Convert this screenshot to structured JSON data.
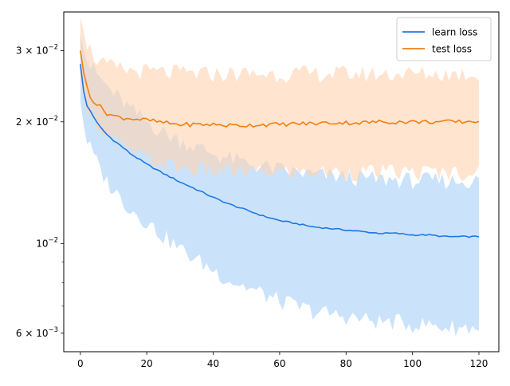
{
  "chart_data": {
    "type": "line",
    "xlim": [
      -5,
      126
    ],
    "ylim": [
      0.0054,
      0.0374
    ],
    "yscale": "log",
    "grid": false,
    "legend_position": "top-right",
    "x_ticks": [
      {
        "value": 0,
        "label": "0"
      },
      {
        "value": 20,
        "label": "20"
      },
      {
        "value": 40,
        "label": "40"
      },
      {
        "value": 60,
        "label": "60"
      },
      {
        "value": 80,
        "label": "80"
      },
      {
        "value": 100,
        "label": "100"
      },
      {
        "value": 120,
        "label": "120"
      }
    ],
    "y_major_ticks": [
      {
        "value": 0.006,
        "base": "6 × 10",
        "exp": "−3"
      },
      {
        "value": 0.01,
        "base": "10",
        "exp": "−2"
      },
      {
        "value": 0.02,
        "base": "2 × 10",
        "exp": "−2"
      },
      {
        "value": 0.03,
        "base": "3 × 10",
        "exp": "−2"
      }
    ],
    "y_minor_ticks": [
      0.007,
      0.008,
      0.009,
      0.04
    ],
    "series": [
      {
        "name": "learn loss",
        "color": "#1f77e4",
        "band_color": "#a9d1f7",
        "key_x": [
          0,
          1,
          2,
          3,
          4,
          5,
          6,
          7,
          8,
          10,
          12,
          15,
          20,
          25,
          30,
          35,
          40,
          45,
          50,
          55,
          60,
          65,
          70,
          75,
          80,
          85,
          90,
          95,
          100,
          105,
          110,
          115,
          120
        ],
        "key_mean": [
          0.0278,
          0.0238,
          0.0219,
          0.0213,
          0.0206,
          0.0199,
          0.0194,
          0.019,
          0.0186,
          0.018,
          0.0175,
          0.0167,
          0.0157,
          0.0149,
          0.0142,
          0.0136,
          0.013,
          0.0125,
          0.0121,
          0.0117,
          0.0114,
          0.0112,
          0.011,
          0.0109,
          0.0108,
          0.0107,
          0.0106,
          0.0106,
          0.0105,
          0.0105,
          0.0104,
          0.0104,
          0.0104
        ],
        "key_upper": [
          0.033,
          0.03,
          0.0285,
          0.0275,
          0.0268,
          0.0262,
          0.0256,
          0.025,
          0.0245,
          0.0235,
          0.0227,
          0.0215,
          0.02,
          0.0188,
          0.018,
          0.0173,
          0.0167,
          0.0162,
          0.0158,
          0.0155,
          0.0152,
          0.015,
          0.0148,
          0.0147,
          0.0146,
          0.0145,
          0.0144,
          0.0144,
          0.0143,
          0.0143,
          0.0143,
          0.0143,
          0.0143
        ],
        "key_lower": [
          0.0225,
          0.0196,
          0.018,
          0.0172,
          0.0165,
          0.0158,
          0.0152,
          0.0147,
          0.0142,
          0.0136,
          0.013,
          0.0122,
          0.0113,
          0.0104,
          0.0097,
          0.0091,
          0.0086,
          0.0081,
          0.0078,
          0.0075,
          0.0072,
          0.007,
          0.0068,
          0.0067,
          0.0066,
          0.0065,
          0.0064,
          0.0064,
          0.0063,
          0.0063,
          0.0062,
          0.0062,
          0.0062
        ]
      },
      {
        "name": "test loss",
        "color": "#f07f10",
        "band_color": "#ffd2b0",
        "key_x": [
          0,
          1,
          2,
          3,
          4,
          5,
          6,
          7,
          8,
          10,
          12,
          15,
          20,
          25,
          30,
          35,
          40,
          45,
          50,
          55,
          60,
          65,
          70,
          75,
          80,
          85,
          90,
          95,
          100,
          105,
          110,
          115,
          120
        ],
        "key_mean": [
          0.03,
          0.0265,
          0.0245,
          0.0232,
          0.0225,
          0.0221,
          0.0218,
          0.0214,
          0.021,
          0.0207,
          0.0205,
          0.0204,
          0.0202,
          0.0199,
          0.0197,
          0.0197,
          0.0197,
          0.0196,
          0.0196,
          0.0197,
          0.0197,
          0.0198,
          0.0198,
          0.0199,
          0.0199,
          0.0199,
          0.02,
          0.02,
          0.02,
          0.02,
          0.02,
          0.02,
          0.0201
        ],
        "key_upper": [
          0.0365,
          0.0335,
          0.0315,
          0.0302,
          0.0292,
          0.0285,
          0.028,
          0.0277,
          0.0275,
          0.0272,
          0.027,
          0.0268,
          0.0266,
          0.0265,
          0.0264,
          0.0263,
          0.0263,
          0.0263,
          0.0263,
          0.0263,
          0.0263,
          0.0263,
          0.0263,
          0.0263,
          0.0263,
          0.0263,
          0.0263,
          0.0263,
          0.0263,
          0.0263,
          0.0263,
          0.0263,
          0.0263
        ],
        "key_lower": [
          0.025,
          0.0232,
          0.0222,
          0.0214,
          0.0207,
          0.02,
          0.0195,
          0.019,
          0.0186,
          0.018,
          0.0175,
          0.0168,
          0.0162,
          0.0157,
          0.0154,
          0.0152,
          0.0151,
          0.0151,
          0.015,
          0.015,
          0.015,
          0.015,
          0.015,
          0.015,
          0.015,
          0.015,
          0.015,
          0.015,
          0.015,
          0.015,
          0.015,
          0.015,
          0.015
        ]
      }
    ]
  }
}
